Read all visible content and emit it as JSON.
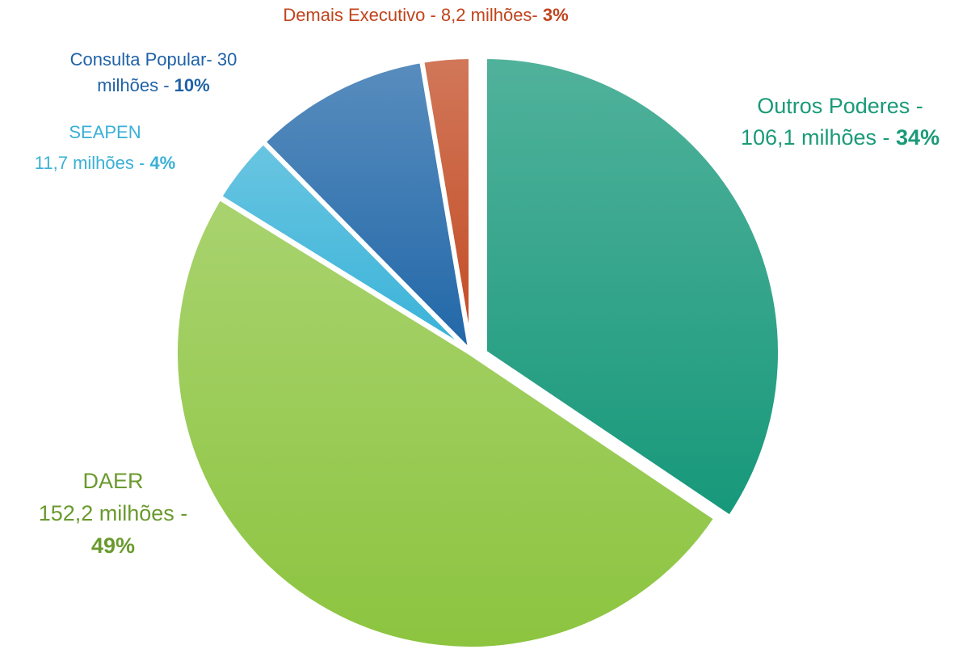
{
  "chart_data": {
    "type": "pie",
    "categories": [
      "Outros Poderes",
      "DAER",
      "SEAPEN",
      "Consulta Popular",
      "Demais Executivo"
    ],
    "values": [
      106.1,
      152.2,
      11.7,
      30,
      8.2
    ],
    "percents": [
      34,
      49,
      4,
      10,
      3
    ],
    "percent_labels": [
      "34%",
      "49%",
      "4%",
      "10%",
      "3%"
    ],
    "labels": [
      {
        "lines": [
          "Outros Poderes -",
          "106,1 milhões - "
        ]
      },
      {
        "lines": [
          "DAER",
          "152,2 milhões -"
        ]
      },
      {
        "lines": [
          "SEAPEN",
          "11,7 milhões - "
        ]
      },
      {
        "lines": [
          "Consulta Popular- 30",
          "milhões - "
        ]
      },
      {
        "lines": [
          "Demais Executivo - 8,2 milhões- "
        ]
      }
    ],
    "colors": [
      "#17987a",
      "#8cc43f",
      "#38b2d8",
      "#2167a8",
      "#c24a22"
    ],
    "label_colors": [
      "#1a9a78",
      "#6a9a2e",
      "#3ab0d6",
      "#1f62a6",
      "#c0441c"
    ]
  }
}
